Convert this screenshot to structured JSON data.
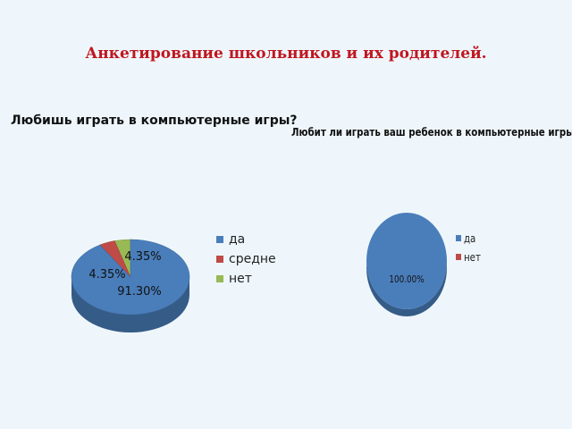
{
  "slide": {
    "title": "Анкетирование школьников и их родителей."
  },
  "chart_data": [
    {
      "type": "pie",
      "title": "Любишь играть в компьютерные игры?",
      "categories": [
        "да",
        "средне",
        "нет"
      ],
      "values": [
        91.3,
        4.35,
        4.35
      ],
      "data_labels": [
        "91.30%",
        "4.35%",
        "4.35%"
      ],
      "colors": [
        "#4a7ebb",
        "#be4b48",
        "#98b954"
      ],
      "legend_position": "right"
    },
    {
      "type": "pie",
      "title": "Любит ли играть ваш ребенок в компьютерные игры?",
      "categories": [
        "да",
        "нет"
      ],
      "values": [
        100.0,
        0
      ],
      "data_labels": [
        "100.00%"
      ],
      "colors": [
        "#4a7ebb",
        "#be4b48"
      ],
      "legend_position": "right"
    }
  ]
}
